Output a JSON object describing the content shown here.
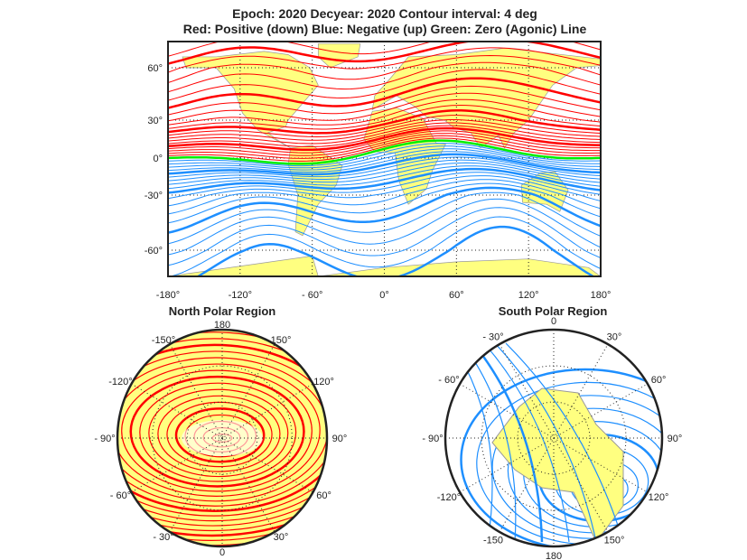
{
  "chart_data": [
    {
      "type": "contour",
      "panel": "world-map",
      "title_lines": [
        "Epoch: 2020  Decyear: 2020  Contour interval: 4 deg",
        "Red: Positive (down)  Blue: Negative (up)  Green: Zero (Agonic) Line"
      ],
      "contour_interval_deg": 4,
      "xlim": [
        -180,
        180
      ],
      "ylim": [
        -78,
        84
      ],
      "xticks": [
        "-180°",
        "-120°",
        "- 60°",
        "0°",
        "60°",
        "120°",
        "180°"
      ],
      "xtick_values": [
        -180,
        -120,
        -60,
        0,
        60,
        120,
        180
      ],
      "yticks": [
        "60°",
        "30°",
        "0°",
        "-30°",
        "-60°"
      ],
      "ytick_values": [
        60,
        30,
        0,
        -30,
        -60
      ],
      "grid": true,
      "series": [
        {
          "name": "Red: Positive (down)",
          "color": "#ff0000",
          "levels_range": [
            4,
            84
          ]
        },
        {
          "name": "Blue: Negative (up)",
          "color": "#1e8fff",
          "levels_range": [
            -80,
            -4
          ]
        },
        {
          "name": "Green: Zero (Agonic) Line",
          "color": "#00ee00",
          "levels": [
            0
          ]
        }
      ],
      "land_color": "#ffff80"
    },
    {
      "type": "contour",
      "panel": "north-polar",
      "title": "North Polar Region",
      "angle_labels": [
        "180",
        "-150°",
        "150°",
        "-120°",
        "120°",
        "- 90°",
        "90°",
        "- 60°",
        "60°",
        "- 30°",
        "30°",
        "0"
      ],
      "angle_values": [
        180,
        -150,
        150,
        -120,
        120,
        -90,
        90,
        -60,
        60,
        -30,
        30,
        0
      ],
      "color": "#ff0000"
    },
    {
      "type": "contour",
      "panel": "south-polar",
      "title": "South Polar Region",
      "angle_labels": [
        "0",
        "- 30°",
        "30°",
        "- 60°",
        "60°",
        "- 90°",
        "90°",
        "-120°",
        "120°",
        "-150",
        "150°",
        "180"
      ],
      "angle_values": [
        0,
        -30,
        30,
        -60,
        60,
        -90,
        90,
        -120,
        120,
        -150,
        150,
        180
      ],
      "color": "#1e8fff"
    }
  ]
}
